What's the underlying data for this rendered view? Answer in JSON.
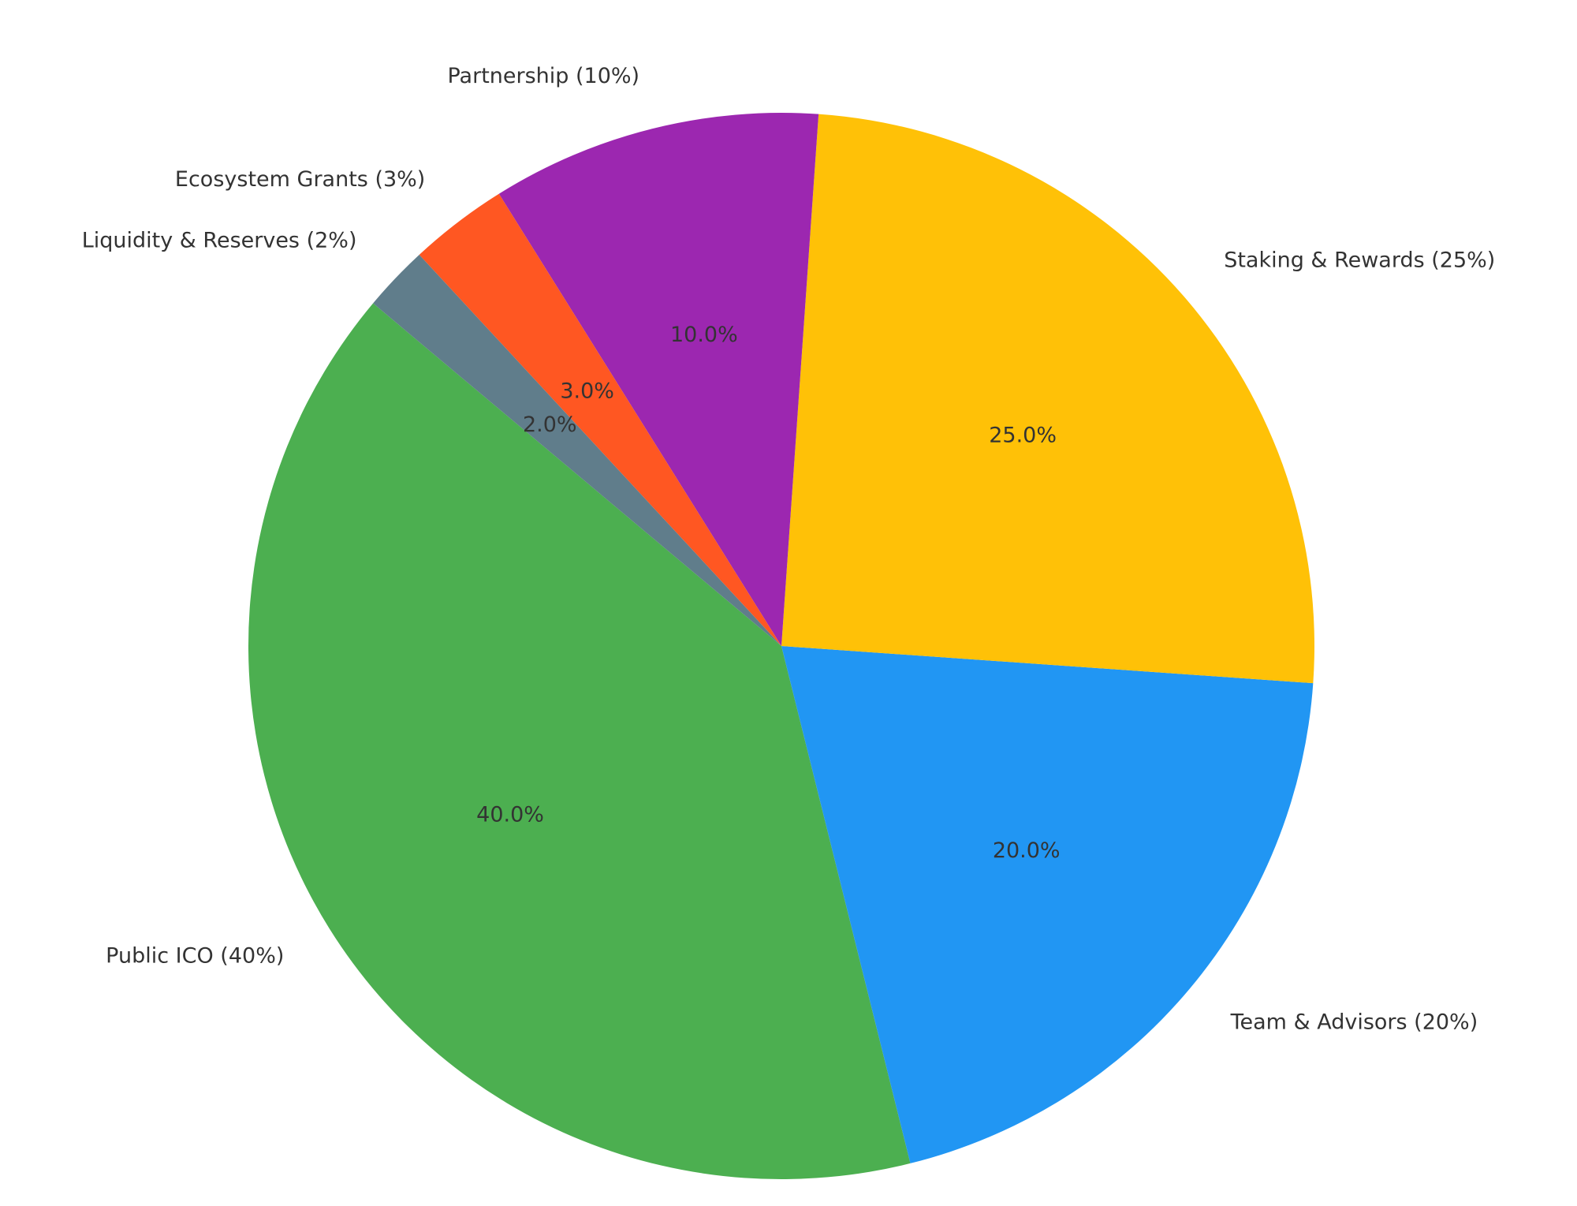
{
  "chart_data": {
    "type": "pie",
    "categories": [
      "Public ICO (40%)",
      "Team & Advisors (20%)",
      "Staking & Rewards (25%)",
      "Partnership (10%)",
      "Ecosystem Grants (3%)",
      "Liquidity & Reserves (2%)"
    ],
    "values": [
      40,
      20,
      25,
      10,
      3,
      2
    ],
    "value_labels": [
      "40.0%",
      "20.0%",
      "25.0%",
      "10.0%",
      "3.0%",
      "2.0%"
    ],
    "colors": [
      "#4caf50",
      "#2196f3",
      "#ffc107",
      "#9c27b0",
      "#ff5722",
      "#607d8b"
    ]
  }
}
